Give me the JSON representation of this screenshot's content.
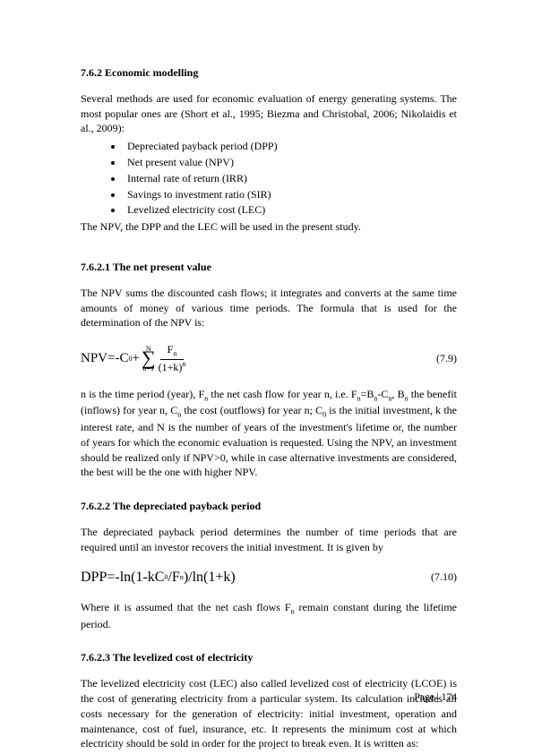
{
  "section1": {
    "heading": "7.6.2 Economic modelling",
    "intro": "Several methods are used for economic evaluation of energy generating systems. The most popular ones are (Short et al., 1995; Biezma and Christobal, 2006; Nikolaidis et al., 2009):",
    "bullets": [
      "Depreciated payback period (DPP)",
      "Net present value (NPV)",
      "Internal rate of return (IRR)",
      "Savings to investment ratio (SIR)",
      "Levelized electricity cost (LEC)"
    ],
    "closing": "The NPV, the DPP and the LEC will be used in the present study."
  },
  "section2": {
    "heading": "7.6.2.1 The net present value",
    "intro": "The NPV sums the discounted cash flows; it integrates and converts at the same time amounts of money of various time periods. The formula that is used for the determination of the NPV is:",
    "eq": {
      "lhs": "NPV=-C",
      "c0sub": "0",
      "plus": "+",
      "sig_top": "N",
      "sig_bot": "n=1",
      "frac_num_a": "F",
      "frac_num_sub": "n",
      "frac_den_a": "(1+k)",
      "frac_den_sup": "n",
      "num": "(7.9)"
    },
    "body": "n is the time period (year), Fn the net cash flow for year n, i.e. Fn=Bn-Cn, Bn the benefit (inflows) for year n, Cn the cost (outflows) for year n; C0 is the initial investment, k the interest rate, and N is the number of years of the investment's lifetime or, the number of years for which the economic evaluation is requested. Using the NPV, an investment should be realized only if NPV>0, while in case alternative investments are considered, the best will be the one with higher NPV."
  },
  "section3": {
    "heading": "7.6.2.2 The depreciated payback period",
    "intro": "The depreciated payback period determines the number of time periods that are required until an investor recovers the initial investment. It is given by",
    "eq": {
      "formula": "DPP=-ln(1-kC",
      "sub0": "0",
      "mid": "/F",
      "subn": "n",
      "tail": ")/ln(1+k)",
      "num": "(7.10)"
    },
    "body": "Where it is assumed that the net cash flows Fn remain constant during the lifetime period."
  },
  "section4": {
    "heading": "7.6.2.3 The levelized cost of electricity",
    "intro": "The levelized electricity cost (LEC) also called levelized cost of electricity (LCOE) is the cost of generating electricity from a particular system. Its calculation includes all costs necessary for the generation of electricity: initial investment, operation and maintenance, cost of fuel, insurance, etc. It represents the minimum cost at which electricity should be sold in order for the project to break even. It is written as:"
  },
  "footer": {
    "label": "Page | 174"
  }
}
